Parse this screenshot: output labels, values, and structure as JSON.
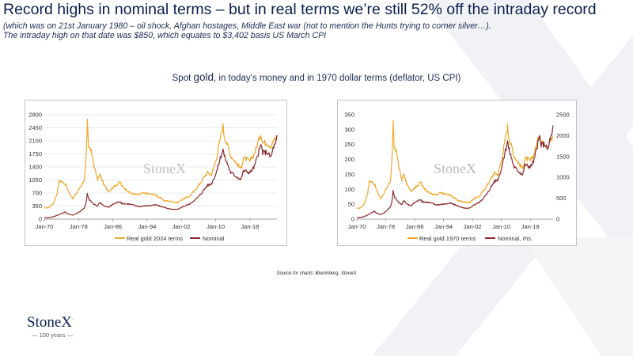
{
  "page": {
    "title": "Record highs in nominal terms – but in real terms we’re still 52% off the intraday record",
    "sub1": "(which was on 21st January 1980 – oil shock, Afghan hostages, Middle East war (not to mention the Hunts trying to corner silver…).",
    "sub2": "The intraday high on that date was $850, which equates to $3,402 basis US March CPI",
    "subtitle_pre": "Spot ",
    "subtitle_gold": "gold",
    "subtitle_post": ", in today’s money and in 1970 dollar terms (deflator, US  CPI)",
    "source": "Source  for charts: Bloomberg,  StoneX",
    "logo": "StoneX",
    "logo_mark": "·",
    "years": "— 100 years —",
    "watermark": "StoneX",
    "colors": {
      "gold": "#F0A82A",
      "maroon": "#8A2A2E",
      "navy": "#0B1F4E"
    }
  },
  "chart_data": [
    {
      "type": "line",
      "x_ticks": [
        "Jan-70",
        "Jan-78",
        "Jan-86",
        "Jan-94",
        "Jan-02",
        "Jan-10",
        "Jan-18"
      ],
      "y_ticks": [
        "0",
        "350",
        "700",
        "1050",
        "1400",
        "1750",
        "2100",
        "2450",
        "2800"
      ],
      "ylim": [
        0,
        2800
      ],
      "xlim": [
        1970.0,
        2024.3
      ],
      "grid": true,
      "legend_position": "bottom",
      "series": [
        {
          "name": "Real gold 2024 terms",
          "color": "#F0A82A",
          "x": [
            1970,
            1971,
            1972,
            1973,
            1973.5,
            1974,
            1974.9,
            1975.5,
            1976.6,
            1977.5,
            1978.5,
            1979.3,
            1979.7,
            1980.05,
            1980.3,
            1980.8,
            1981.5,
            1982.4,
            1983,
            1984,
            1985,
            1986,
            1987.8,
            1988,
            1990,
            1992,
            1993,
            1996,
            1998,
            1999.7,
            2001.3,
            2002,
            2004,
            2006,
            2008,
            2009,
            2010,
            2011.7,
            2012,
            2013.5,
            2015.9,
            2016.5,
            2018,
            2019,
            2020.6,
            2021,
            2022,
            2022.9,
            2023.5,
            2024,
            2024.3
          ],
          "values": [
            300,
            310,
            400,
            700,
            1050,
            1000,
            950,
            770,
            550,
            700,
            850,
            1050,
            1500,
            2600,
            1950,
            1900,
            1500,
            1050,
            1200,
            900,
            750,
            850,
            1000,
            900,
            700,
            650,
            700,
            650,
            500,
            470,
            450,
            520,
            620,
            900,
            1250,
            1200,
            1550,
            2500,
            2250,
            1700,
            1350,
            1650,
            1550,
            1750,
            2300,
            2050,
            2050,
            1950,
            2100,
            2150,
            2250
          ]
        },
        {
          "name": "Nominal",
          "color": "#8A2A2E",
          "x": [
            1970,
            1971,
            1972,
            1973,
            1974,
            1974.9,
            1975.5,
            1976.6,
            1977.5,
            1978.5,
            1979.3,
            1979.7,
            1980.05,
            1980.3,
            1981.5,
            1982.4,
            1983,
            1984,
            1985,
            1986,
            1987.8,
            1988,
            1990,
            1992,
            1996,
            1999.7,
            2001.3,
            2002,
            2004,
            2006,
            2008,
            2009,
            2010,
            2011.7,
            2012,
            2013.5,
            2015.9,
            2016.5,
            2018,
            2019,
            2020.6,
            2021,
            2022,
            2022.9,
            2023.5,
            2024,
            2024.3
          ],
          "values": [
            35,
            40,
            60,
            100,
            150,
            190,
            140,
            110,
            150,
            220,
            300,
            400,
            680,
            550,
            400,
            350,
            450,
            350,
            320,
            400,
            480,
            420,
            400,
            340,
            380,
            260,
            260,
            320,
            410,
            600,
            900,
            950,
            1200,
            1880,
            1700,
            1250,
            1060,
            1300,
            1250,
            1400,
            2000,
            1780,
            1800,
            1650,
            1950,
            2000,
            2200
          ]
        }
      ]
    },
    {
      "type": "line",
      "x_ticks": [
        "Jan-70",
        "Jan-78",
        "Jan-86",
        "Jan-94",
        "Jan-02",
        "Jan-10",
        "Jan-18"
      ],
      "y_ticks_left": [
        "0",
        "50",
        "100",
        "150",
        "200",
        "250",
        "300",
        "350"
      ],
      "y_ticks_right": [
        "0",
        "500",
        "1000",
        "1500",
        "2000",
        "2500"
      ],
      "ylim_left": [
        0,
        350
      ],
      "ylim_right": [
        0,
        2500
      ],
      "xlim": [
        1970.0,
        2024.3
      ],
      "grid": false,
      "legend_position": "bottom",
      "series": [
        {
          "name": "Real gold 1970 terms",
          "color": "#F0A82A",
          "axis": "left",
          "x": [
            1970,
            1971,
            1972,
            1973,
            1973.5,
            1974,
            1974.9,
            1975.5,
            1976.6,
            1977.5,
            1978.5,
            1979.3,
            1979.7,
            1980.05,
            1980.3,
            1980.8,
            1981.5,
            1982.4,
            1983,
            1984,
            1985,
            1986,
            1987.8,
            1988,
            1990,
            1992,
            1993,
            1996,
            1998,
            1999.7,
            2001.3,
            2002,
            2004,
            2006,
            2008,
            2009,
            2010,
            2011.7,
            2012,
            2013.5,
            2015.9,
            2016.5,
            2018,
            2019,
            2020.6,
            2021,
            2022,
            2022.9,
            2023.5,
            2024,
            2024.3
          ],
          "values": [
            36,
            38,
            50,
            88,
            130,
            125,
            118,
            96,
            68,
            88,
            105,
            130,
            188,
            320,
            240,
            235,
            185,
            130,
            150,
            112,
            95,
            105,
            125,
            112,
            88,
            80,
            88,
            80,
            62,
            58,
            56,
            65,
            78,
            112,
            155,
            150,
            195,
            310,
            280,
            212,
            168,
            205,
            195,
            218,
            285,
            255,
            255,
            243,
            262,
            268,
            280
          ]
        },
        {
          "name": "Nominal, rhs",
          "color": "#8A2A2E",
          "axis": "right",
          "x": [
            1970,
            1971,
            1972,
            1973,
            1974,
            1974.9,
            1975.5,
            1976.6,
            1977.5,
            1978.5,
            1979.3,
            1979.7,
            1980.05,
            1980.3,
            1981.5,
            1982.4,
            1983,
            1984,
            1985,
            1986,
            1987.8,
            1988,
            1990,
            1992,
            1996,
            1999.7,
            2001.3,
            2002,
            2004,
            2006,
            2008,
            2009,
            2010,
            2011.7,
            2012,
            2013.5,
            2015.9,
            2016.5,
            2018,
            2019,
            2020.6,
            2021,
            2022,
            2022.9,
            2023.5,
            2024,
            2024.3
          ],
          "values": [
            35,
            40,
            60,
            100,
            150,
            190,
            140,
            110,
            150,
            220,
            300,
            400,
            680,
            550,
            400,
            350,
            450,
            350,
            320,
            400,
            480,
            420,
            400,
            340,
            380,
            260,
            260,
            320,
            410,
            600,
            900,
            950,
            1200,
            1880,
            1700,
            1250,
            1060,
            1300,
            1250,
            1400,
            2000,
            1780,
            1800,
            1650,
            1950,
            2000,
            2200
          ]
        }
      ]
    }
  ]
}
